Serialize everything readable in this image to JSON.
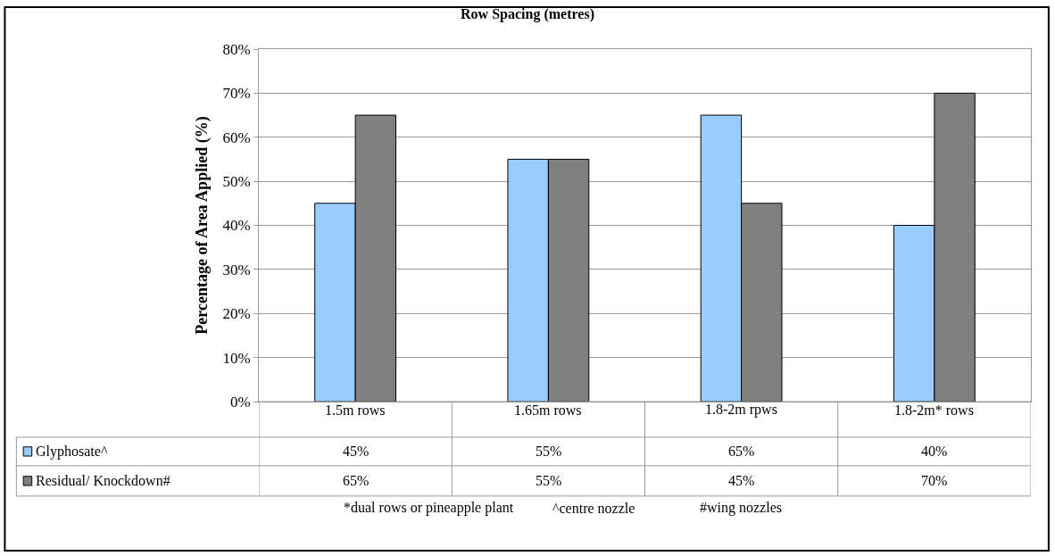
{
  "chart_data": {
    "type": "bar",
    "title": "Row Spacing (metres)",
    "ylabel": "Percentage of Area Applied (%)",
    "categories": [
      "1.5m rows",
      "1.65m rows",
      "1.8-2m rpws",
      "1.8-2m* rows"
    ],
    "series": [
      {
        "name": "Glyphosate^",
        "color": "#99ccff",
        "values": [
          45,
          55,
          65,
          40
        ],
        "value_labels": [
          "45%",
          "55%",
          "65%",
          "40%"
        ]
      },
      {
        "name": "Residual/ Knockdown#",
        "color": "#808080",
        "values": [
          65,
          55,
          45,
          70
        ],
        "value_labels": [
          "65%",
          "55%",
          "45%",
          "70%"
        ]
      }
    ],
    "ylim": [
      0,
      80
    ],
    "yticks": [
      {
        "value": 0,
        "label": "0%"
      },
      {
        "value": 10,
        "label": "10%"
      },
      {
        "value": 20,
        "label": "20%"
      },
      {
        "value": 30,
        "label": "30%"
      },
      {
        "value": 40,
        "label": "40%"
      },
      {
        "value": 50,
        "label": "50%"
      },
      {
        "value": 60,
        "label": "60%"
      },
      {
        "value": 70,
        "label": "70%"
      },
      {
        "value": 80,
        "label": "80%"
      }
    ],
    "grid": "y",
    "legend": "bottom left",
    "annotations": [
      "*dual rows or pineapple plant",
      "^centre nozzle",
      "#wing nozzles"
    ]
  }
}
